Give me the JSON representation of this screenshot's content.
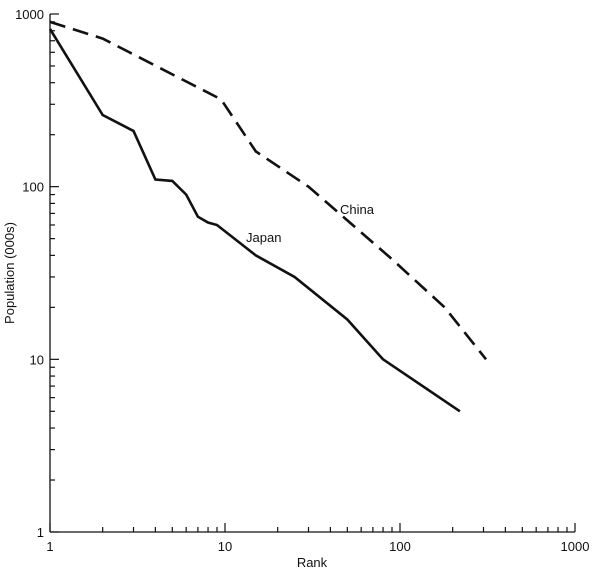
{
  "chart_data": {
    "type": "line",
    "title": "",
    "xlabel": "Rank",
    "ylabel": "Population (000s)",
    "x_scale": "log",
    "y_scale": "log",
    "xlim": [
      1,
      1000
    ],
    "ylim": [
      1,
      1000
    ],
    "grid": false,
    "legend": "none",
    "x_ticks": [
      "1",
      "10",
      "100",
      "1000"
    ],
    "y_ticks": [
      "1",
      "10",
      "100",
      "1000"
    ],
    "series": [
      {
        "name": "China",
        "style": "dashed",
        "color": "#111111",
        "x": [
          1,
          2,
          9.5,
          15,
          30,
          45,
          90,
          180,
          310
        ],
        "y": [
          900,
          720,
          320,
          160,
          100,
          70,
          38,
          20,
          10
        ]
      },
      {
        "name": "Japan",
        "style": "solid",
        "color": "#111111",
        "x": [
          1,
          2,
          3,
          4,
          5,
          6,
          7,
          8,
          9,
          15,
          25,
          50,
          80,
          220
        ],
        "y": [
          820,
          260,
          210,
          110,
          108,
          90,
          67,
          62,
          60,
          40,
          30,
          17,
          10,
          5
        ]
      }
    ]
  }
}
